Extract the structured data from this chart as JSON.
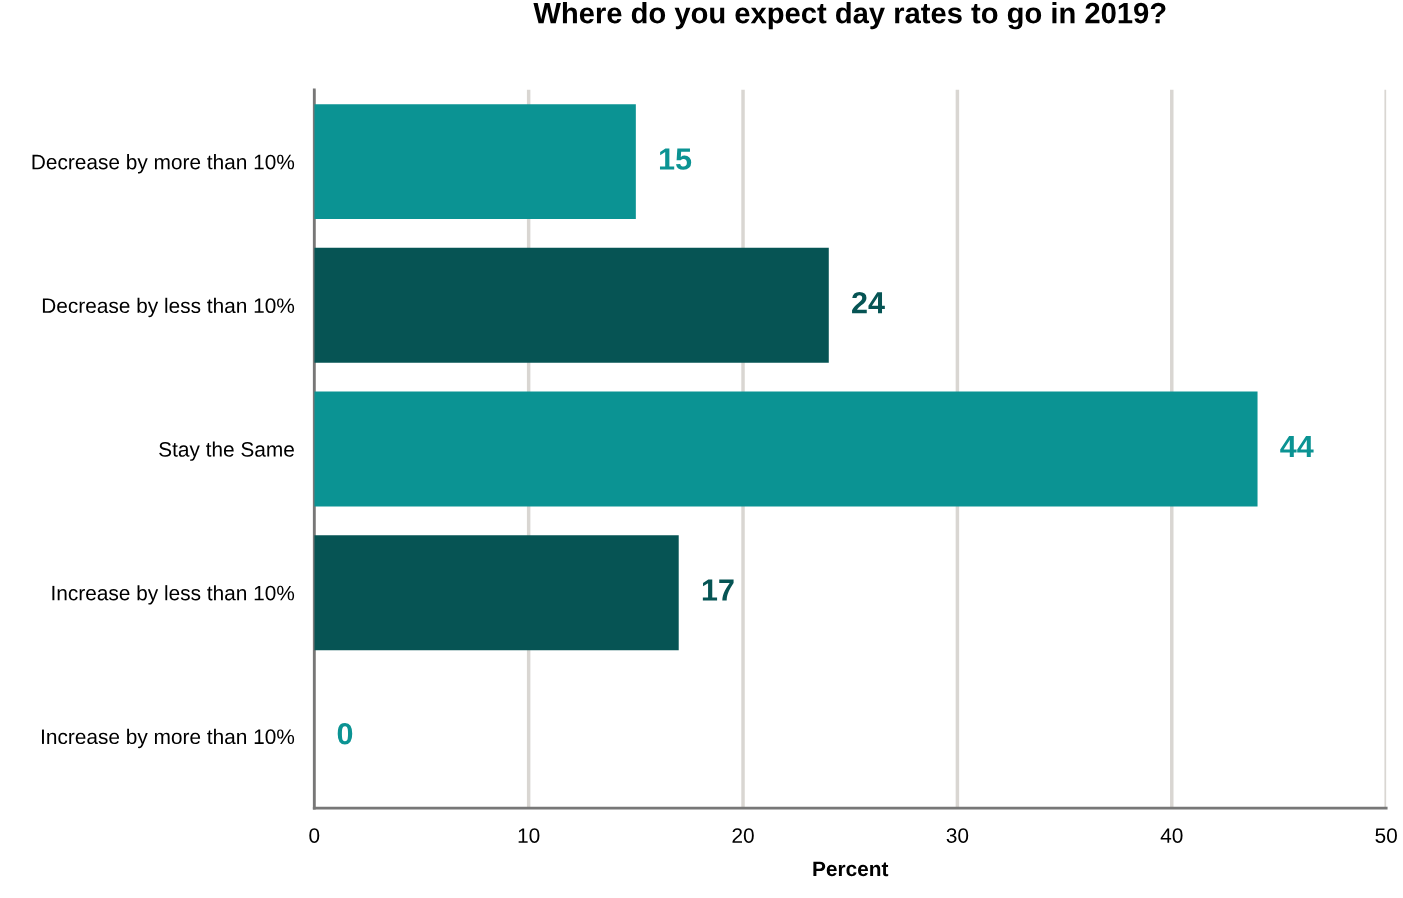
{
  "chart_data": {
    "type": "bar",
    "orientation": "horizontal",
    "title": "Where do you expect day rates to go in 2019?",
    "xlabel": "Percent",
    "categories": [
      "Decrease by more than 10%",
      "Decrease by less than 10%",
      "Stay the Same",
      "Increase by less than 10%",
      "Increase by more than 10%"
    ],
    "values": [
      15,
      24,
      44,
      17,
      0
    ],
    "colors": [
      "#0b9393",
      "#065454",
      "#0b9393",
      "#065454",
      "#0b9393"
    ],
    "xlim": [
      0,
      50
    ],
    "xticks": [
      0,
      10,
      20,
      30,
      40,
      50
    ],
    "grid": "x",
    "data_labels": true,
    "legend": false
  }
}
